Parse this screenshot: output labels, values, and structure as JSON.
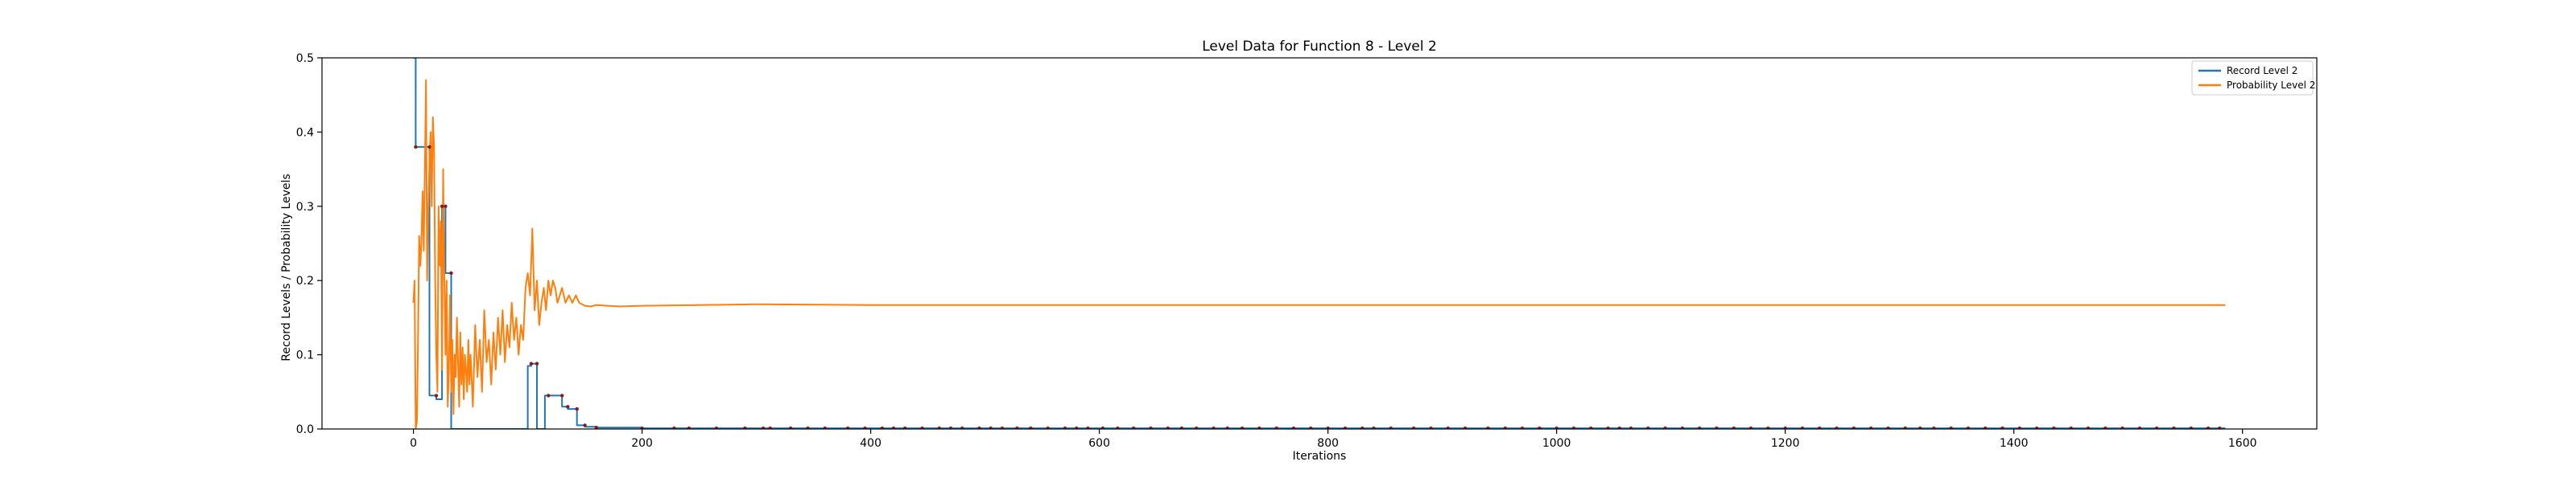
{
  "chart_data": {
    "type": "line",
    "title": "Level Data for Function 8 - Level 2",
    "xlabel": "Iterations",
    "ylabel": "Record Levels / Probability Levels",
    "xlim": [
      -80,
      1665
    ],
    "ylim": [
      0.0,
      0.5
    ],
    "xticks": [
      0,
      200,
      400,
      600,
      800,
      1000,
      1200,
      1400,
      1600
    ],
    "yticks": [
      0.0,
      0.1,
      0.2,
      0.3,
      0.4,
      0.5
    ],
    "grid": false,
    "legend": {
      "position": "top-right"
    },
    "series": [
      {
        "name": "Record Level 2",
        "color": "#1f77b4",
        "step": true,
        "x": [
          0,
          2,
          2,
          14,
          14,
          20,
          20,
          25,
          25,
          28,
          28,
          33,
          33,
          35,
          35,
          100,
          100,
          103,
          103,
          108,
          108,
          110,
          110,
          115,
          115,
          118,
          118,
          130,
          130,
          135,
          135,
          143,
          143,
          150,
          150,
          160,
          160,
          200,
          200,
          1585
        ],
        "y": [
          0.5,
          0.5,
          0.38,
          0.38,
          0.045,
          0.045,
          0.04,
          0.04,
          0.3,
          0.3,
          0.21,
          0.21,
          0.0,
          0.0,
          0.0,
          0.0,
          0.085,
          0.085,
          0.088,
          0.088,
          0.0,
          0.0,
          0.0,
          0.0,
          0.045,
          0.045,
          0.045,
          0.045,
          0.03,
          0.03,
          0.027,
          0.027,
          0.005,
          0.005,
          0.003,
          0.003,
          0.002,
          0.002,
          0.001,
          0.001
        ]
      },
      {
        "name": "Probability Level 2",
        "color": "#ff7f0e",
        "x": [
          0,
          1,
          2,
          3,
          4,
          5,
          6,
          7,
          8,
          9,
          10,
          11,
          12,
          13,
          14,
          15,
          16,
          17,
          18,
          19,
          20,
          21,
          22,
          23,
          24,
          25,
          26,
          27,
          28,
          29,
          30,
          31,
          32,
          33,
          34,
          35,
          36,
          37,
          38,
          39,
          40,
          41,
          42,
          43,
          44,
          45,
          46,
          47,
          48,
          49,
          50,
          52,
          54,
          56,
          58,
          60,
          62,
          64,
          66,
          68,
          70,
          72,
          74,
          76,
          78,
          80,
          82,
          84,
          86,
          88,
          90,
          92,
          94,
          96,
          98,
          100,
          102,
          104,
          106,
          108,
          110,
          112,
          114,
          116,
          118,
          120,
          122,
          124,
          126,
          128,
          130,
          133,
          136,
          139,
          142,
          145,
          150,
          155,
          160,
          170,
          180,
          200,
          250,
          300,
          400,
          600,
          800,
          1000,
          1200,
          1400,
          1585
        ],
        "y": [
          0.17,
          0.2,
          0.0,
          0.01,
          0.12,
          0.26,
          0.22,
          0.25,
          0.32,
          0.24,
          0.35,
          0.47,
          0.2,
          0.3,
          0.36,
          0.4,
          0.3,
          0.42,
          0.38,
          0.2,
          0.1,
          0.05,
          0.3,
          0.22,
          0.28,
          0.08,
          0.35,
          0.21,
          0.1,
          0.2,
          0.03,
          0.08,
          0.18,
          0.05,
          0.12,
          0.02,
          0.1,
          0.07,
          0.15,
          0.09,
          0.03,
          0.13,
          0.06,
          0.11,
          0.04,
          0.1,
          0.08,
          0.05,
          0.12,
          0.06,
          0.1,
          0.03,
          0.14,
          0.07,
          0.12,
          0.05,
          0.16,
          0.09,
          0.12,
          0.06,
          0.13,
          0.08,
          0.15,
          0.1,
          0.16,
          0.09,
          0.14,
          0.11,
          0.17,
          0.12,
          0.15,
          0.1,
          0.14,
          0.12,
          0.19,
          0.21,
          0.18,
          0.27,
          0.16,
          0.2,
          0.14,
          0.17,
          0.19,
          0.16,
          0.2,
          0.18,
          0.2,
          0.19,
          0.17,
          0.18,
          0.19,
          0.17,
          0.18,
          0.17,
          0.18,
          0.17,
          0.166,
          0.165,
          0.167,
          0.166,
          0.165,
          0.166,
          0.167,
          0.168,
          0.167,
          0.167,
          0.167,
          0.167,
          0.167,
          0.167,
          0.167
        ]
      }
    ],
    "markers": {
      "color": "#8b1a1a",
      "x": [
        2,
        14,
        20,
        25,
        28,
        33,
        103,
        108,
        118,
        130,
        135,
        143,
        150,
        160,
        200,
        228,
        241,
        265,
        290,
        306,
        312,
        330,
        345,
        360,
        380,
        395,
        410,
        420,
        430,
        445,
        460,
        470,
        480,
        495,
        505,
        515,
        528,
        540,
        555,
        570,
        580,
        590,
        603,
        616,
        630,
        645,
        660,
        672,
        685,
        700,
        712,
        725,
        740,
        755,
        770,
        785,
        800,
        815,
        830,
        840,
        855,
        875,
        890,
        905,
        920,
        940,
        955,
        970,
        985,
        1000,
        1015,
        1030,
        1045,
        1055,
        1065,
        1080,
        1095,
        1110,
        1125,
        1140,
        1155,
        1170,
        1185,
        1200,
        1215,
        1230,
        1245,
        1260,
        1275,
        1290,
        1305,
        1318,
        1330,
        1345,
        1360,
        1375,
        1390,
        1405,
        1420,
        1435,
        1450,
        1465,
        1480,
        1495,
        1510,
        1525,
        1540,
        1555,
        1570,
        1580
      ],
      "y": [
        0.38,
        0.38,
        0.045,
        0.3,
        0.3,
        0.21,
        0.088,
        0.088,
        0.045,
        0.045,
        0.03,
        0.027,
        0.005,
        0.002,
        0.001,
        0.001,
        0.001,
        0.001,
        0.001,
        0.001,
        0.001,
        0.001,
        0.001,
        0.001,
        0.001,
        0.001,
        0.001,
        0.001,
        0.001,
        0.001,
        0.001,
        0.001,
        0.001,
        0.001,
        0.001,
        0.001,
        0.001,
        0.001,
        0.001,
        0.001,
        0.001,
        0.001,
        0.001,
        0.001,
        0.001,
        0.001,
        0.001,
        0.001,
        0.001,
        0.001,
        0.001,
        0.001,
        0.001,
        0.001,
        0.001,
        0.001,
        0.001,
        0.001,
        0.001,
        0.001,
        0.001,
        0.001,
        0.001,
        0.001,
        0.001,
        0.001,
        0.001,
        0.001,
        0.001,
        0.001,
        0.001,
        0.001,
        0.001,
        0.001,
        0.001,
        0.001,
        0.001,
        0.001,
        0.001,
        0.001,
        0.001,
        0.001,
        0.001,
        0.001,
        0.001,
        0.001,
        0.001,
        0.001,
        0.001,
        0.001,
        0.001,
        0.001,
        0.001,
        0.001,
        0.001,
        0.001,
        0.001,
        0.001,
        0.001,
        0.001,
        0.001,
        0.001,
        0.001,
        0.001,
        0.001,
        0.001,
        0.001,
        0.001,
        0.001,
        0.001
      ]
    }
  }
}
